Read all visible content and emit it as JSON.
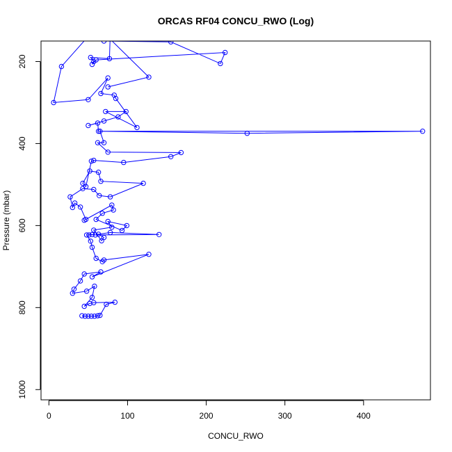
{
  "chart_data": {
    "type": "line",
    "title": "ORCAS RF04 CONCU_RWO (Log)",
    "xlabel": "CONCU_RWO",
    "ylabel": "Pressure (mbar)",
    "xlim": [
      -10,
      485
    ],
    "ylim": [
      1025,
      150
    ],
    "y_reversed": true,
    "xticks": [
      0,
      100,
      200,
      300,
      400
    ],
    "yticks": [
      200,
      400,
      600,
      800,
      1000
    ],
    "grid": false,
    "line_color": "#0000ff",
    "marker": "open-circle",
    "series": [
      {
        "points": [
          [
            42,
            820
          ],
          [
            46,
            821
          ],
          [
            50,
            821
          ],
          [
            54,
            821
          ],
          [
            58,
            821
          ],
          [
            62,
            820
          ],
          [
            65,
            819
          ],
          [
            73,
            792
          ],
          [
            84,
            787
          ],
          [
            57,
            788
          ],
          [
            52,
            790
          ],
          [
            45,
            797
          ],
          [
            55,
            775
          ],
          [
            58,
            748
          ],
          [
            48,
            760
          ],
          [
            30,
            765
          ],
          [
            32,
            755
          ],
          [
            40,
            735
          ],
          [
            45,
            718
          ],
          [
            66,
            713
          ],
          [
            55,
            725
          ],
          [
            127,
            670
          ],
          [
            70,
            684
          ],
          [
            68,
            688
          ],
          [
            60,
            680
          ],
          [
            55,
            653
          ],
          [
            53,
            638
          ],
          [
            48,
            623
          ],
          [
            51,
            623
          ],
          [
            55,
            622
          ],
          [
            59,
            623
          ],
          [
            140,
            622
          ],
          [
            78,
            617
          ],
          [
            63,
            621
          ],
          [
            70,
            629
          ],
          [
            67,
            637
          ],
          [
            57,
            611
          ],
          [
            80,
            604
          ],
          [
            75,
            590
          ],
          [
            99,
            600
          ],
          [
            93,
            612
          ],
          [
            60,
            585
          ],
          [
            68,
            570
          ],
          [
            82,
            562
          ],
          [
            80,
            550
          ],
          [
            45,
            587
          ],
          [
            47,
            585
          ],
          [
            40,
            555
          ],
          [
            33,
            545
          ],
          [
            30,
            556
          ],
          [
            27,
            530
          ],
          [
            43,
            510
          ],
          [
            57,
            512
          ],
          [
            64,
            527
          ],
          [
            78,
            530
          ],
          [
            120,
            497
          ],
          [
            66,
            492
          ],
          [
            63,
            470
          ],
          [
            52,
            467
          ],
          [
            43,
            497
          ],
          [
            47,
            505
          ],
          [
            54,
            443
          ],
          [
            57,
            441
          ],
          [
            95,
            446
          ],
          [
            155,
            432
          ],
          [
            168,
            422
          ],
          [
            75,
            421
          ],
          [
            62,
            398
          ],
          [
            70,
            398
          ],
          [
            65,
            370
          ],
          [
            252,
            375
          ],
          [
            475,
            370
          ],
          [
            63,
            370
          ],
          [
            62,
            350
          ],
          [
            50,
            356
          ],
          [
            70,
            345
          ],
          [
            88,
            335
          ],
          [
            98,
            322
          ],
          [
            72,
            322
          ],
          [
            112,
            361
          ],
          [
            85,
            290
          ],
          [
            83,
            282
          ],
          [
            66,
            278
          ],
          [
            75,
            240
          ],
          [
            50,
            293
          ],
          [
            6,
            300
          ],
          [
            16,
            212
          ],
          [
            48,
            143
          ],
          [
            70,
            150
          ],
          [
            155,
            152
          ],
          [
            218,
            205
          ],
          [
            224,
            178
          ],
          [
            60,
            196
          ],
          [
            55,
            207
          ],
          [
            57,
            200
          ],
          [
            53,
            190
          ],
          [
            77,
            193
          ],
          [
            78,
            130
          ],
          [
            46,
            125
          ],
          [
            75,
            140
          ],
          [
            127,
            238
          ],
          [
            75,
            262
          ]
        ]
      }
    ]
  }
}
